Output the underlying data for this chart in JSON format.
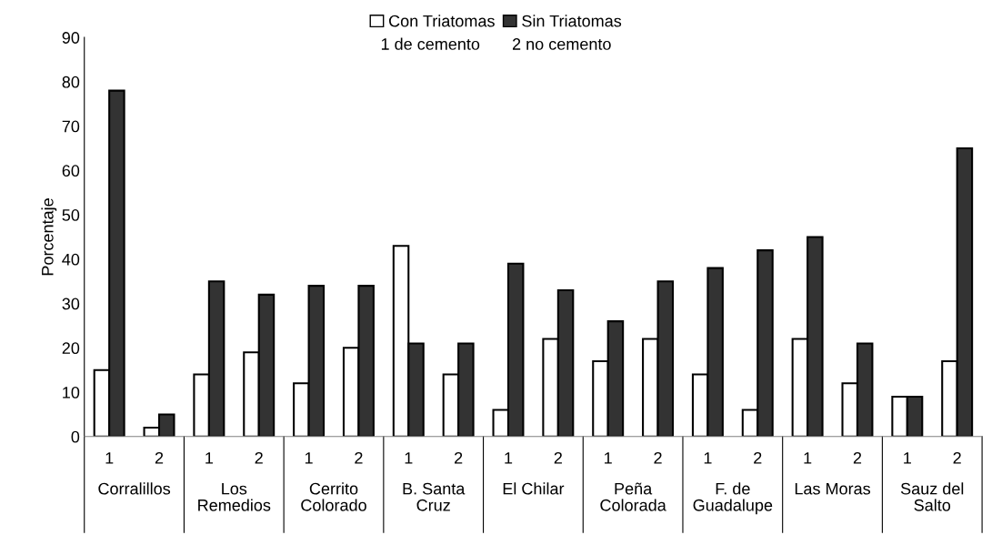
{
  "chart_data": {
    "type": "bar",
    "subtitle": "1 de cemento       2 no cemento",
    "ylabel": "Porcentaje",
    "categories": [
      "1",
      "2",
      "1",
      "2",
      "1",
      "2",
      "1",
      "2",
      "1",
      "2",
      "1",
      "2",
      "1",
      "2",
      "1",
      "2",
      "1",
      "2"
    ],
    "annotations": [
      "Corralillos",
      "Los\nRemedios",
      "Cerrito\nColorado",
      "B. Santa\nCruz",
      "El Chilar",
      "Peña\nColorada",
      "F. de\nGuadalupe",
      "Las Moras",
      "Sauz del\nSalto"
    ],
    "series": [
      {
        "name": "Con Triatomas",
        "color": "#ffffff",
        "values": [
          15,
          2,
          14,
          19,
          12,
          20,
          43,
          14,
          6,
          22,
          17,
          22,
          14,
          6,
          22,
          12,
          9,
          17
        ]
      },
      {
        "name": "Sin Triatomas",
        "color": "#333333",
        "values": [
          78,
          5,
          35,
          32,
          34,
          34,
          21,
          21,
          39,
          33,
          26,
          35,
          38,
          42,
          45,
          21,
          9,
          65
        ]
      }
    ],
    "ylim": [
      0,
      90
    ],
    "yticks": [
      0,
      10,
      20,
      30,
      40,
      50,
      60,
      70,
      80,
      90
    ],
    "grid": false,
    "legend": "top"
  }
}
